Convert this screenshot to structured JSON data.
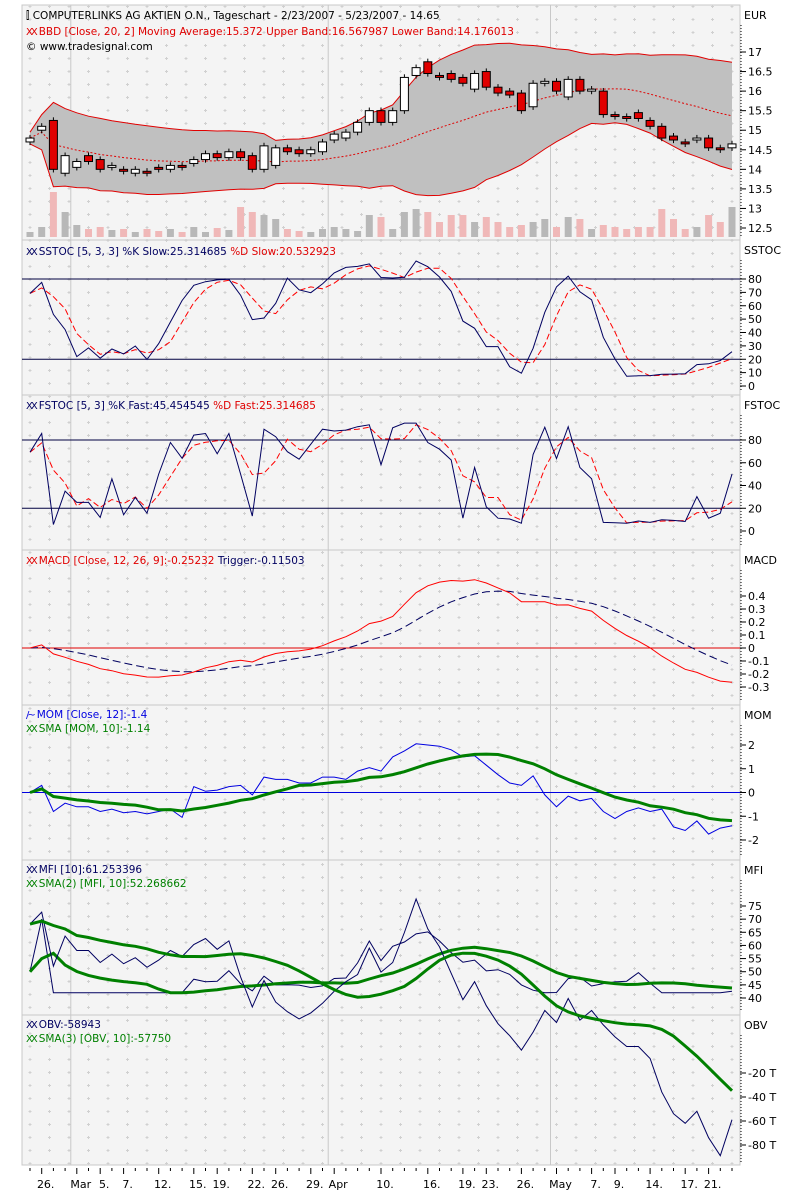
{
  "header": {
    "title": "COMPUTERLINKS AG AKTIEN O.N., Tageschart - 2/23/2007 - 5/23/2007 - 14.65",
    "copyright": "© www.tradesignal.com"
  },
  "legends": {
    "bbd": "BBD [Close, 20, 2] Moving Average:15.372 Upper Band:16.567987 Lower Band:14.176013",
    "sstoc_k": "SSTOC [5, 3, 3] %K Slow:25.314685",
    "sstoc_d": "%D Slow:20.532923",
    "fstoc_k": "FSTOC [5, 3] %K Fast:45.454545",
    "fstoc_d": "%D Fast:25.314685",
    "macd": "MACD [Close, 12, 26, 9]:-0.25232",
    "trigger": "Trigger:-0.11503",
    "mom": "MOM [Close, 12]:-1.4",
    "mom_sma": "SMA [MOM, 10]:-1.14",
    "mfi": "MFI [10]:61.253396",
    "mfi_sma": "SMA(2) [MFI, 10]:52.268662",
    "obv": "OBV:-58943",
    "obv_sma": "SMA(3) [OBV, 10]:-57750"
  },
  "colors": {
    "up": "#ffffff",
    "down": "#e00000",
    "band_fill": "#c0c0c0",
    "band_line": "#e00000",
    "navy": "#000060",
    "red": "#ff0000",
    "green": "#008000",
    "blue": "#0000e0",
    "vol_up": "#b8b8b8",
    "vol_down": "#f0b8b8",
    "panel_bg": "#f4f4f4"
  },
  "chart_data": {
    "type": "candlestick",
    "dates": [
      "2007-02-23",
      "2007-02-26",
      "2007-02-27",
      "2007-02-28",
      "2007-03-01",
      "2007-03-02",
      "2007-03-05",
      "2007-03-06",
      "2007-03-07",
      "2007-03-08",
      "2007-03-09",
      "2007-03-12",
      "2007-03-13",
      "2007-03-14",
      "2007-03-15",
      "2007-03-16",
      "2007-03-19",
      "2007-03-20",
      "2007-03-21",
      "2007-03-22",
      "2007-03-23",
      "2007-03-26",
      "2007-03-27",
      "2007-03-28",
      "2007-03-29",
      "2007-03-30",
      "2007-04-02",
      "2007-04-03",
      "2007-04-04",
      "2007-04-05",
      "2007-04-10",
      "2007-04-11",
      "2007-04-12",
      "2007-04-13",
      "2007-04-16",
      "2007-04-17",
      "2007-04-18",
      "2007-04-19",
      "2007-04-20",
      "2007-04-23",
      "2007-04-24",
      "2007-04-25",
      "2007-04-26",
      "2007-04-27",
      "2007-04-30",
      "2007-05-02",
      "2007-05-03",
      "2007-05-04",
      "2007-05-07",
      "2007-05-08",
      "2007-05-09",
      "2007-05-10",
      "2007-05-11",
      "2007-05-14",
      "2007-05-15",
      "2007-05-16",
      "2007-05-17",
      "2007-05-18",
      "2007-05-21",
      "2007-05-22",
      "2007-05-23"
    ],
    "open": [
      14.7,
      15.0,
      15.25,
      13.9,
      14.05,
      14.35,
      14.25,
      14.05,
      14.0,
      13.9,
      13.95,
      14.05,
      14.0,
      14.1,
      14.15,
      14.25,
      14.4,
      14.3,
      14.45,
      14.35,
      14.0,
      14.1,
      14.55,
      14.5,
      14.4,
      14.45,
      14.75,
      14.8,
      14.95,
      15.2,
      15.5,
      15.2,
      15.5,
      16.4,
      16.75,
      16.4,
      16.45,
      16.35,
      16.05,
      16.5,
      16.1,
      16.0,
      15.95,
      15.6,
      16.2,
      16.25,
      15.85,
      16.3,
      16.0,
      16.0,
      15.4,
      15.35,
      15.45,
      15.25,
      15.1,
      14.85,
      14.7,
      14.75,
      14.8,
      14.55,
      14.55
    ],
    "close": [
      14.8,
      15.1,
      14.0,
      14.35,
      14.2,
      14.2,
      14.0,
      14.1,
      13.95,
      14.0,
      13.9,
      14.0,
      14.1,
      14.05,
      14.25,
      14.4,
      14.3,
      14.45,
      14.3,
      14.0,
      14.6,
      14.55,
      14.45,
      14.4,
      14.5,
      14.7,
      14.9,
      14.95,
      15.2,
      15.5,
      15.2,
      15.5,
      16.35,
      16.6,
      16.45,
      16.35,
      16.3,
      16.2,
      16.45,
      16.1,
      15.95,
      15.9,
      15.5,
      16.2,
      16.25,
      16.0,
      16.3,
      16.0,
      16.05,
      15.4,
      15.35,
      15.3,
      15.3,
      15.1,
      14.8,
      14.75,
      14.65,
      14.8,
      14.55,
      14.5,
      14.65
    ],
    "volume": [
      5000,
      10000,
      45000,
      25000,
      12000,
      8000,
      10000,
      7000,
      8000,
      5000,
      8000,
      6000,
      8000,
      5000,
      10000,
      5000,
      9000,
      7000,
      30000,
      25000,
      22000,
      18000,
      8000,
      6000,
      5000,
      8000,
      10000,
      8000,
      6000,
      22000,
      20000,
      8000,
      25000,
      28000,
      25000,
      15000,
      22000,
      22000,
      15000,
      20000,
      15000,
      10000,
      12000,
      15000,
      18000,
      10000,
      20000,
      18000,
      8000,
      12000,
      10000,
      8000,
      10000,
      10000,
      28000,
      18000,
      8000,
      10000,
      22000,
      15000,
      30000
    ],
    "x_labels": [
      {
        "label": "26.",
        "date": "2007-02-26"
      },
      {
        "label": "Mar",
        "date": "2007-03-01"
      },
      {
        "label": "5.",
        "date": "2007-03-05"
      },
      {
        "label": "7.",
        "date": "2007-03-07"
      },
      {
        "label": "12.",
        "date": "2007-03-12"
      },
      {
        "label": "15.",
        "date": "2007-03-15"
      },
      {
        "label": "19.",
        "date": "2007-03-19"
      },
      {
        "label": "22.",
        "date": "2007-03-22"
      },
      {
        "label": "26.",
        "date": "2007-03-26"
      },
      {
        "label": "29.",
        "date": "2007-03-29"
      },
      {
        "label": "Apr",
        "date": "2007-04-02"
      },
      {
        "label": "10.",
        "date": "2007-04-10"
      },
      {
        "label": "16.",
        "date": "2007-04-16"
      },
      {
        "label": "19.",
        "date": "2007-04-19"
      },
      {
        "label": "23.",
        "date": "2007-04-23"
      },
      {
        "label": "26.",
        "date": "2007-04-26"
      },
      {
        "label": "May",
        "date": "2007-05-02"
      },
      {
        "label": "7.",
        "date": "2007-05-07"
      },
      {
        "label": "9.",
        "date": "2007-05-09"
      },
      {
        "label": "14.",
        "date": "2007-05-14"
      },
      {
        "label": "17.",
        "date": "2007-05-17"
      },
      {
        "label": "21.",
        "date": "2007-05-21"
      }
    ],
    "panels": [
      {
        "id": "price",
        "axis_title": "EUR",
        "ticks": [
          "17",
          "16.5",
          "16",
          "15.5",
          "15",
          "14.5",
          "14",
          "13.5",
          "13",
          "12.5"
        ],
        "tick_values": [
          17,
          16.5,
          16,
          15.5,
          15,
          14.5,
          14,
          13.5,
          13,
          12.5
        ]
      },
      {
        "id": "sstoc",
        "axis_title": "SSTOC",
        "ticks": [
          "80",
          "70",
          "60",
          "50",
          "40",
          "30",
          "20",
          "10",
          "0"
        ],
        "tick_values": [
          80,
          70,
          60,
          50,
          40,
          30,
          20,
          10,
          0
        ],
        "levels": [
          80,
          20
        ]
      },
      {
        "id": "fstoc",
        "axis_title": "FSTOC",
        "ticks": [
          "80",
          "60",
          "40",
          "20",
          "0"
        ],
        "tick_values": [
          80,
          60,
          40,
          20,
          0
        ],
        "levels": [
          80,
          20
        ]
      },
      {
        "id": "macd",
        "axis_title": "MACD",
        "ticks": [
          "0.4",
          "0.3",
          "0.2",
          "0.1",
          "0",
          "-0.1",
          "-0.2",
          "-0.3"
        ],
        "tick_values": [
          0.4,
          0.3,
          0.2,
          0.1,
          0,
          -0.1,
          -0.2,
          -0.3
        ],
        "levels": [
          0
        ]
      },
      {
        "id": "mom",
        "axis_title": "MOM",
        "ticks": [
          "2",
          "1",
          "0",
          "-1",
          "-2"
        ],
        "tick_values": [
          2,
          1,
          0,
          -1,
          -2
        ],
        "levels": [
          0
        ]
      },
      {
        "id": "mfi",
        "axis_title": "MFI",
        "ticks": [
          "75",
          "70",
          "65",
          "60",
          "55",
          "50",
          "45",
          "40"
        ],
        "tick_values": [
          75,
          70,
          65,
          60,
          55,
          50,
          45,
          40
        ]
      },
      {
        "id": "obv",
        "axis_title": "OBV",
        "ticks": [
          "-20 T",
          "-40 T",
          "-60 T",
          "-80 T"
        ],
        "tick_values": [
          -20000,
          -40000,
          -60000,
          -80000
        ]
      }
    ],
    "last_values": {
      "obv": -58943
    }
  }
}
